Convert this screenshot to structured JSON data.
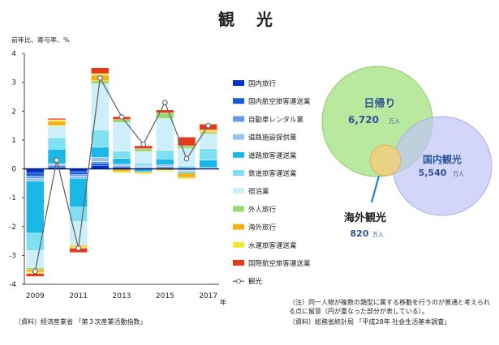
{
  "title": "観 光",
  "y_axis_label": "前年比、寄与率、%",
  "x_unit": "年",
  "note": "（注）同一人物が複数の類型に属する移動を行うのが普通と考えられる点に留意（円が重なった部分が表している）。",
  "source_right": "（資料）総務省統計局 「平成28年 社会生活基本調査」",
  "source_left": "（資料）経済産業省 「第３次産業活動指数」",
  "chart_data": [
    {
      "type": "bar",
      "stacked": true,
      "ylim": [
        -4,
        4
      ],
      "yticks": [
        "4",
        "3",
        "2",
        "1",
        "0",
        "-1",
        "-2",
        "-3",
        "-4"
      ],
      "categories": [
        "2009",
        "2010",
        "2011",
        "2012",
        "2013",
        "2014",
        "2015",
        "2016",
        "2017"
      ],
      "xtick_labels": [
        "2009",
        "",
        "2011",
        "",
        "2013",
        "",
        "2015",
        "",
        "2017"
      ],
      "series": [
        {
          "name": "国内旅行",
          "color": "#0033cc",
          "values": [
            -0.15,
            0.05,
            -0.1,
            0.12,
            0.05,
            0.03,
            0.04,
            -0.03,
            0.01
          ]
        },
        {
          "name": "国内航空旅客運送業",
          "color": "#1a5ad9",
          "values": [
            -0.1,
            0.05,
            -0.1,
            0.08,
            0.04,
            0.02,
            0.03,
            -0.02,
            0.01
          ]
        },
        {
          "name": "自動車レンタル業",
          "color": "#6699e6",
          "values": [
            -0.08,
            0.03,
            -0.05,
            0.05,
            0.02,
            0.02,
            0.02,
            -0.02,
            0.01
          ]
        },
        {
          "name": "道路施設提供業",
          "color": "#99c2ee",
          "values": [
            -0.1,
            0.05,
            -0.08,
            0.15,
            0.05,
            0.03,
            0.05,
            -0.03,
            0.02
          ]
        },
        {
          "name": "道路旅客運送業",
          "color": "#1ab8e6",
          "values": [
            -1.8,
            0.5,
            -1.0,
            0.35,
            0.2,
            -0.1,
            0.2,
            -0.05,
            0.25
          ]
        },
        {
          "name": "鉄道旅客運送業",
          "color": "#7fe0f2",
          "values": [
            -0.6,
            0.4,
            -0.5,
            0.6,
            0.25,
            0.1,
            0.3,
            0.1,
            0.4
          ]
        },
        {
          "name": "宿泊業",
          "color": "#cceff9",
          "values": [
            -0.6,
            0.4,
            -0.8,
            1.6,
            1.0,
            0.4,
            1.1,
            0.6,
            0.5
          ]
        },
        {
          "name": "外人旅行",
          "color": "#99d973",
          "values": [
            -0.05,
            0.02,
            -0.02,
            0.1,
            0.1,
            0.1,
            0.2,
            0.1,
            0.05
          ]
        },
        {
          "name": "海外旅行",
          "color": "#f2b31a",
          "values": [
            -0.1,
            0.15,
            -0.05,
            0.2,
            -0.1,
            -0.05,
            -0.05,
            -0.15,
            0.05
          ]
        },
        {
          "name": "水運旅客運送業",
          "color": "#f2e633",
          "values": [
            -0.05,
            0.05,
            -0.05,
            0.05,
            -0.05,
            -0.03,
            -0.04,
            -0.05,
            0.05
          ]
        },
        {
          "name": "国際航空旅客運送業",
          "color": "#e63b1a",
          "values": [
            -0.1,
            0.05,
            -0.15,
            0.2,
            0.1,
            0.1,
            0.1,
            0.3,
            0.2
          ]
        }
      ],
      "line": {
        "name": "観光",
        "color": "#666666",
        "values": [
          -3.55,
          0.3,
          -2.75,
          3.15,
          1.8,
          0.85,
          2.3,
          0.35,
          1.5
        ]
      }
    },
    {
      "type": "venn",
      "sets": [
        {
          "label": "日帰り",
          "value": "6,720",
          "unit": "万人",
          "color": "#9de07a"
        },
        {
          "label": "国内観光",
          "value": "5,540",
          "unit": "万人",
          "color": "#c2c6f5"
        },
        {
          "label": "海外観光",
          "value": "820",
          "unit": "万人",
          "color": "#f4cc7a"
        }
      ]
    }
  ]
}
